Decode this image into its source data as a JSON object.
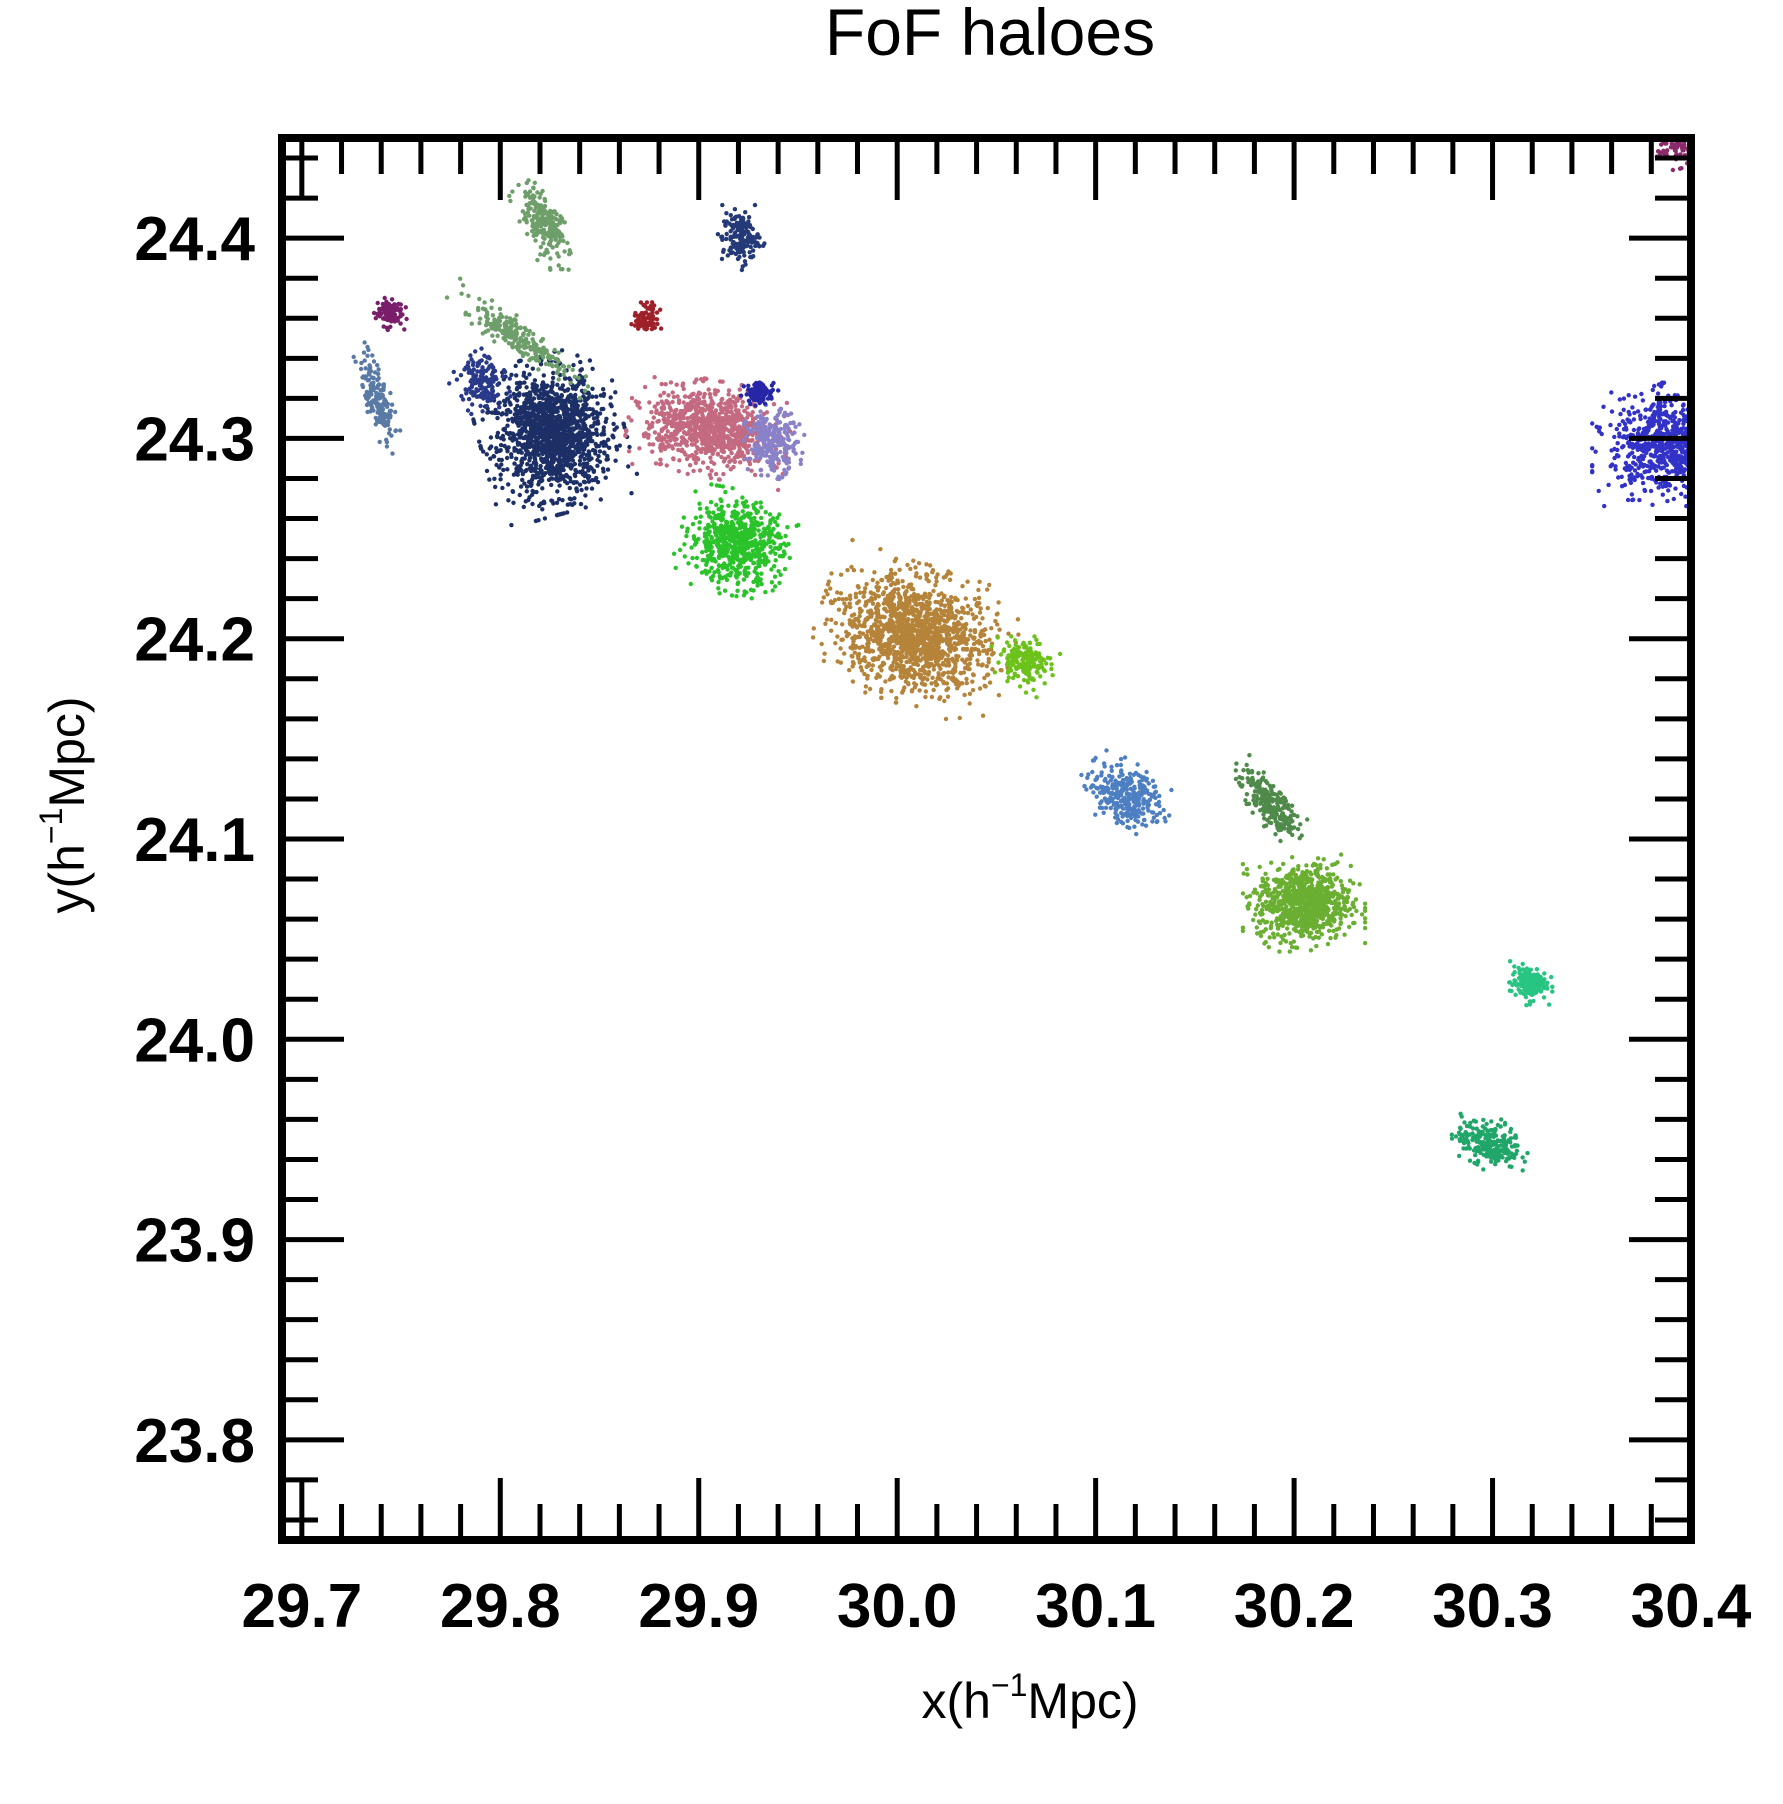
{
  "chart_data": {
    "type": "scatter",
    "title": "FoF haloes",
    "xlabel": {
      "prefix": "x(h",
      "sup": "−1",
      "suffix": "Mpc)"
    },
    "ylabel": {
      "prefix": "y(h",
      "sup": "−1",
      "suffix": "Mpc)"
    },
    "xlim": [
      29.69,
      30.4
    ],
    "ylim": [
      23.75,
      24.45
    ],
    "xticks": [
      "29.7",
      "29.8",
      "29.9",
      "30.0",
      "30.1",
      "30.2",
      "30.3",
      "30.4"
    ],
    "yticks": [
      "23.8",
      "23.9",
      "24.0",
      "24.1",
      "24.2",
      "24.3",
      "24.4"
    ],
    "grid": false,
    "legend": "none",
    "series": [
      {
        "color": "#1c2f66",
        "cx": 29.826,
        "cy": 24.302,
        "rx": 0.033,
        "ry": 0.036,
        "rot": 15,
        "count": 1400
      },
      {
        "color": "#2a3a8a",
        "cx": 29.79,
        "cy": 24.328,
        "rx": 0.012,
        "ry": 0.016,
        "rot": 35,
        "count": 160
      },
      {
        "color": "#6e9e6a",
        "cx": 29.822,
        "cy": 24.408,
        "rx": 0.01,
        "ry": 0.025,
        "rot": 25,
        "count": 220
      },
      {
        "color": "#6e9e6a",
        "cx": 29.81,
        "cy": 24.35,
        "rx": 0.038,
        "ry": 0.008,
        "rot": -35,
        "count": 230
      },
      {
        "color": "#243a78",
        "cx": 29.921,
        "cy": 24.4,
        "rx": 0.011,
        "ry": 0.015,
        "rot": 0,
        "count": 160
      },
      {
        "color": "#7a1e6a",
        "cx": 29.744,
        "cy": 24.363,
        "rx": 0.008,
        "ry": 0.008,
        "rot": 0,
        "count": 110
      },
      {
        "color": "#5a7aa6",
        "cx": 29.738,
        "cy": 24.32,
        "rx": 0.007,
        "ry": 0.026,
        "rot": 15,
        "count": 170
      },
      {
        "color": "#9e2028",
        "cx": 29.874,
        "cy": 24.36,
        "rx": 0.008,
        "ry": 0.009,
        "rot": -30,
        "count": 80
      },
      {
        "color": "#c46a80",
        "cx": 29.905,
        "cy": 24.305,
        "rx": 0.037,
        "ry": 0.022,
        "rot": -10,
        "count": 900
      },
      {
        "color": "#8a82c8",
        "cx": 29.937,
        "cy": 24.298,
        "rx": 0.015,
        "ry": 0.018,
        "rot": 0,
        "count": 240
      },
      {
        "color": "#2626a6",
        "cx": 29.931,
        "cy": 24.323,
        "rx": 0.009,
        "ry": 0.006,
        "rot": 0,
        "count": 90
      },
      {
        "color": "#2ac32a",
        "cx": 29.919,
        "cy": 24.248,
        "rx": 0.028,
        "ry": 0.024,
        "rot": -10,
        "count": 650
      },
      {
        "color": "#b5843a",
        "cx": 30.009,
        "cy": 24.202,
        "rx": 0.045,
        "ry": 0.032,
        "rot": -18,
        "count": 1400
      },
      {
        "color": "#6cc21a",
        "cx": 30.064,
        "cy": 24.189,
        "rx": 0.016,
        "ry": 0.012,
        "rot": -35,
        "count": 180
      },
      {
        "color": "#4d7fc2",
        "cx": 30.115,
        "cy": 24.122,
        "rx": 0.022,
        "ry": 0.015,
        "rot": -30,
        "count": 300
      },
      {
        "color": "#4f8a4a",
        "cx": 30.188,
        "cy": 24.118,
        "rx": 0.009,
        "ry": 0.025,
        "rot": 40,
        "count": 230
      },
      {
        "color": "#6aaf32",
        "cx": 30.205,
        "cy": 24.068,
        "rx": 0.028,
        "ry": 0.022,
        "rot": 0,
        "count": 800
      },
      {
        "color": "#27c482",
        "cx": 30.318,
        "cy": 24.028,
        "rx": 0.011,
        "ry": 0.01,
        "rot": 0,
        "count": 150
      },
      {
        "color": "#21a66a",
        "cx": 30.298,
        "cy": 23.948,
        "rx": 0.02,
        "ry": 0.012,
        "rot": -15,
        "count": 230
      },
      {
        "color": "#3232c8",
        "cx": 30.392,
        "cy": 24.297,
        "rx": 0.038,
        "ry": 0.028,
        "rot": 0,
        "count": 900
      },
      {
        "color": "#8a2a6a",
        "cx": 30.393,
        "cy": 24.445,
        "rx": 0.012,
        "ry": 0.01,
        "rot": 0,
        "count": 70
      }
    ]
  }
}
